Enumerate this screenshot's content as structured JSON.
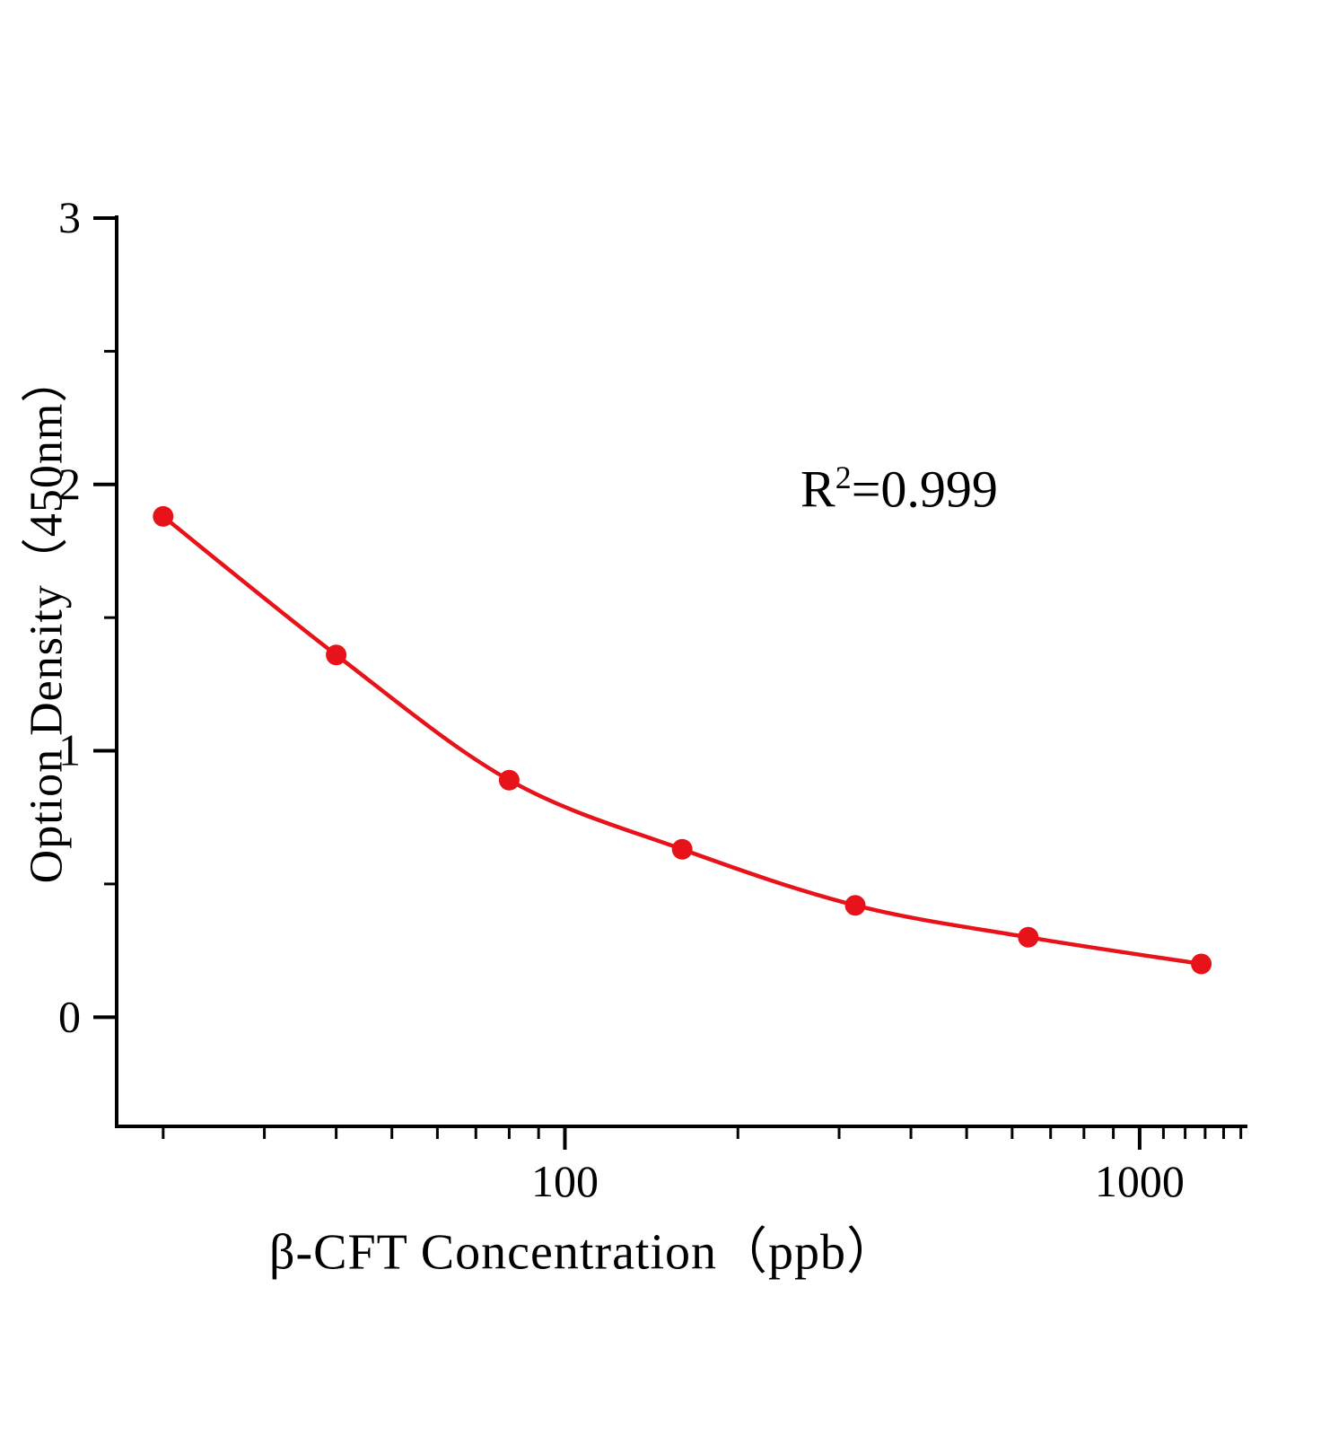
{
  "chart_data": {
    "type": "scatter",
    "subtype": "standard-curve-with-fit-line",
    "x": [
      20,
      40,
      80,
      160,
      320,
      640,
      1280
    ],
    "y": [
      1.88,
      1.36,
      0.89,
      0.63,
      0.42,
      0.3,
      0.2
    ],
    "xlabel": "β-CFT  Concentration（ppb）",
    "ylabel": "Option Density（450nm）",
    "x_scale": "log",
    "xlim": [
      16.6,
      1540
    ],
    "ylim": [
      -0.41,
      3.01
    ],
    "x_ticks_major": [
      100,
      1000
    ],
    "x_ticks_minor": [
      20,
      30,
      40,
      50,
      60,
      70,
      80,
      90,
      200,
      300,
      400,
      500,
      600,
      700,
      800,
      900,
      1100,
      1200,
      1300,
      1400,
      1500
    ],
    "y_ticks_major": [
      0,
      1,
      2,
      3
    ],
    "y_ticks_minor": [
      0.5,
      1.5,
      2.5
    ],
    "grid": false,
    "legend": "none",
    "annotation": {
      "text": "R²=0.999",
      "base": "R",
      "exponent": "2",
      "value": "=0.999"
    },
    "line_color": "#e8131a",
    "marker_color": "#e8131a",
    "axis_color": "#000000",
    "background": "#ffffff"
  }
}
